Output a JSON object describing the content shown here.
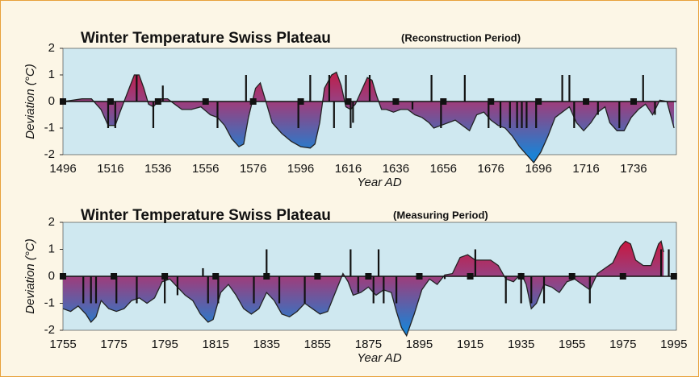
{
  "chart_data": [
    {
      "type": "area",
      "title": "Winter Temperature Swiss Plateau",
      "subtitle": "(Reconstruction Period)",
      "x_label": "Year AD",
      "y_label": "Deviation (°C)",
      "xlim": [
        1496,
        1754
      ],
      "ylim": [
        -2,
        2
      ],
      "xticks": [
        1496,
        1516,
        1536,
        1556,
        1576,
        1596,
        1616,
        1636,
        1656,
        1676,
        1696,
        1716,
        1736
      ],
      "yticks": [
        -2,
        -1,
        0,
        1,
        2
      ],
      "gradient": [
        "#e3001b",
        "#9a3f7e",
        "#1c82d4"
      ],
      "series": [
        {
          "type": "area",
          "color": "#222222",
          "x": [
            1496,
            1500,
            1504,
            1508,
            1512,
            1515,
            1518,
            1520,
            1523,
            1526,
            1528,
            1530,
            1532,
            1534,
            1537,
            1540,
            1543,
            1546,
            1550,
            1554,
            1558,
            1561,
            1564,
            1567,
            1570,
            1572,
            1574,
            1577,
            1579,
            1581,
            1584,
            1588,
            1592,
            1596,
            1600,
            1602,
            1604,
            1606,
            1609,
            1611,
            1613,
            1615,
            1617,
            1619,
            1621,
            1624,
            1626,
            1628,
            1630,
            1632,
            1635,
            1638,
            1641,
            1644,
            1647,
            1650,
            1652,
            1655,
            1658,
            1661,
            1664,
            1667,
            1670,
            1673,
            1676,
            1679,
            1682,
            1685,
            1688,
            1691,
            1694,
            1697,
            1700,
            1703,
            1706,
            1709,
            1712,
            1715,
            1718,
            1721,
            1724,
            1726,
            1729,
            1732,
            1735,
            1738,
            1741,
            1744,
            1747,
            1750,
            1753
          ],
          "values": [
            0,
            0.05,
            0.1,
            0.1,
            -0.3,
            -0.9,
            -0.9,
            -0.4,
            0.3,
            1.0,
            1.0,
            0.5,
            -0.1,
            -0.2,
            0.1,
            0.1,
            -0.1,
            -0.3,
            -0.3,
            -0.2,
            -0.5,
            -0.6,
            -0.9,
            -1.4,
            -1.7,
            -1.6,
            -0.6,
            0.5,
            0.7,
            0.1,
            -0.8,
            -1.2,
            -1.5,
            -1.7,
            -1.75,
            -1.6,
            -0.8,
            0.5,
            1.0,
            1.1,
            0.6,
            -0.2,
            -0.3,
            -0.1,
            0.3,
            0.9,
            0.8,
            0.2,
            -0.3,
            -0.3,
            -0.4,
            -0.3,
            -0.3,
            -0.5,
            -0.6,
            -0.8,
            -1.0,
            -0.9,
            -0.8,
            -0.7,
            -0.9,
            -1.1,
            -0.5,
            -0.4,
            -0.7,
            -0.9,
            -1.0,
            -1.3,
            -1.7,
            -2.0,
            -2.3,
            -1.9,
            -1.3,
            -0.6,
            -0.4,
            -0.2,
            -0.8,
            -1.1,
            -0.8,
            -0.4,
            -0.2,
            -0.8,
            -1.1,
            -1.1,
            -0.6,
            -0.3,
            -0.1,
            -0.5,
            0.05,
            0,
            -1.0
          ]
        },
        {
          "type": "bar",
          "color": "#111111",
          "x": [
            1515,
            1518,
            1527,
            1534,
            1538,
            1561,
            1573,
            1595,
            1600,
            1608,
            1610,
            1615,
            1617,
            1618,
            1625,
            1643,
            1651,
            1655,
            1665,
            1675,
            1680,
            1684,
            1687,
            1689,
            1691,
            1695,
            1706,
            1709,
            1711,
            1721,
            1730,
            1740,
            1745
          ],
          "values": [
            -1,
            -1,
            1,
            -1,
            0.6,
            -1,
            1,
            -1,
            1,
            1,
            -1,
            1,
            -1,
            -0.8,
            1,
            -0.3,
            1,
            -1,
            1,
            -1,
            -1,
            -1,
            -1,
            -1,
            -1,
            -1,
            1,
            1,
            -1,
            -0.5,
            -1,
            1,
            -0.5
          ]
        }
      ]
    },
    {
      "type": "area",
      "title": "Winter Temperature Swiss Plateau",
      "subtitle": "(Measuring Period)",
      "x_label": "Year AD",
      "y_label": "Deviation (°C)",
      "xlim": [
        1755,
        1996
      ],
      "ylim": [
        -2,
        2
      ],
      "xticks": [
        1755,
        1775,
        1795,
        1815,
        1835,
        1855,
        1875,
        1895,
        1915,
        1935,
        1955,
        1975,
        1995
      ],
      "yticks": [
        -2,
        -1,
        0,
        1,
        2
      ],
      "gradient": [
        "#e3001b",
        "#9a3f7e",
        "#1c82d4"
      ],
      "series": [
        {
          "type": "area",
          "color": "#222222",
          "x": [
            1755,
            1758,
            1761,
            1764,
            1766,
            1768,
            1770,
            1773,
            1776,
            1779,
            1782,
            1785,
            1788,
            1791,
            1794,
            1797,
            1800,
            1803,
            1806,
            1809,
            1812,
            1814,
            1817,
            1820,
            1823,
            1826,
            1829,
            1832,
            1835,
            1838,
            1841,
            1844,
            1847,
            1850,
            1853,
            1856,
            1859,
            1862,
            1865,
            1867,
            1869,
            1872,
            1875,
            1878,
            1881,
            1884,
            1886,
            1888,
            1890,
            1893,
            1896,
            1899,
            1902,
            1905,
            1908,
            1911,
            1914,
            1917,
            1920,
            1923,
            1926,
            1929,
            1932,
            1935,
            1937,
            1939,
            1941,
            1944,
            1947,
            1950,
            1953,
            1956,
            1959,
            1962,
            1965,
            1968,
            1971,
            1974,
            1976,
            1978,
            1980,
            1983,
            1986,
            1989,
            1990,
            1991
          ],
          "values": [
            -1.2,
            -1.3,
            -1.1,
            -1.4,
            -1.7,
            -1.5,
            -0.9,
            -1.2,
            -1.3,
            -1.2,
            -0.9,
            -0.8,
            -1.0,
            -0.8,
            -0.2,
            -0.1,
            -0.4,
            -0.7,
            -0.9,
            -1.4,
            -1.7,
            -1.6,
            -0.6,
            -0.3,
            -0.7,
            -1.2,
            -1.4,
            -1.2,
            -0.6,
            -0.9,
            -1.4,
            -1.5,
            -1.3,
            -1.0,
            -1.2,
            -1.4,
            -1.3,
            -0.6,
            0.1,
            -0.2,
            -0.7,
            -0.6,
            -0.4,
            -0.7,
            -0.5,
            -0.6,
            -1.3,
            -1.9,
            -2.2,
            -1.4,
            -0.5,
            -0.1,
            -0.3,
            0.05,
            0.1,
            0.7,
            0.8,
            0.6,
            0.6,
            0.6,
            0.4,
            -0.1,
            -0.2,
            0.1,
            -0.3,
            -1.2,
            -1.0,
            -0.3,
            -0.4,
            -0.6,
            -0.2,
            -0.1,
            -0.3,
            -0.5,
            0.1,
            0.3,
            0.5,
            1.1,
            1.3,
            1.2,
            0.6,
            0.4,
            0.4,
            1.2,
            1.3,
            0.9
          ]
        },
        {
          "type": "bar",
          "color": "#111111",
          "x": [
            1763,
            1766,
            1768,
            1776,
            1784,
            1795,
            1800,
            1810,
            1812,
            1816,
            1830,
            1835,
            1840,
            1850,
            1868,
            1871,
            1877,
            1879,
            1881,
            1886,
            1905,
            1917,
            1929,
            1935,
            1939,
            1944,
            1962,
            1990,
            1993
          ],
          "values": [
            -1,
            -1,
            -1,
            -1,
            -1,
            -1,
            -0.7,
            0.3,
            -1,
            -1,
            -1,
            1,
            -1,
            -1,
            1,
            -0.6,
            -1,
            1,
            -1,
            -1,
            -0.1,
            1,
            -1,
            -1,
            -1,
            -1,
            -1,
            1,
            1
          ]
        }
      ]
    }
  ]
}
